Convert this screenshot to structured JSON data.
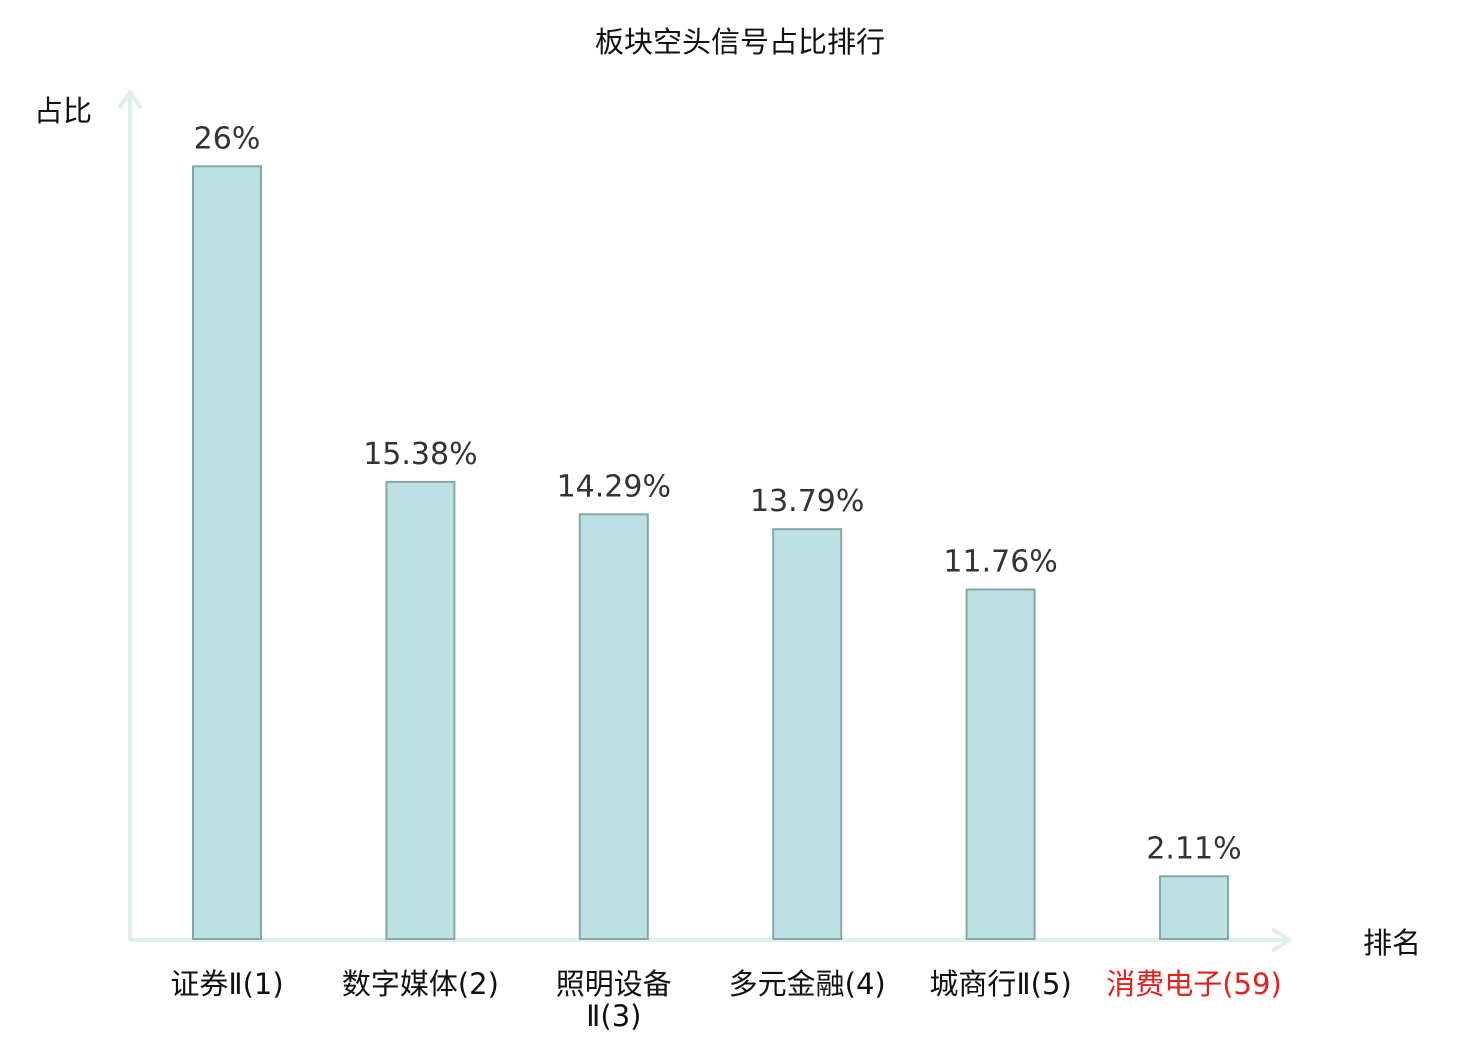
{
  "chart_data": {
    "type": "bar",
    "title": "板块空头信号占比排行",
    "ylabel": "占比",
    "xlabel": "排名",
    "ylim": [
      0,
      28.5
    ],
    "grid": false,
    "legend": "none",
    "categories": [
      {
        "name": "证券Ⅱ",
        "rank": "(1)",
        "highlight": false
      },
      {
        "name": "数字媒体",
        "rank": "(2)",
        "highlight": false
      },
      {
        "name": "照明设备Ⅱ",
        "rank": "(3)",
        "highlight": false
      },
      {
        "name": "多元金融",
        "rank": "(4)",
        "highlight": false
      },
      {
        "name": "城商行Ⅱ",
        "rank": "(5)",
        "highlight": false
      },
      {
        "name": "消费电子",
        "rank": "(59)",
        "highlight": true
      }
    ],
    "values": [
      26,
      15.38,
      14.29,
      13.79,
      11.76,
      2.11
    ],
    "value_labels": [
      "26%",
      "15.38%",
      "14.29%",
      "13.79%",
      "11.76%",
      "2.11%"
    ],
    "colors": {
      "bar_fill": "#bde0e3",
      "bar_stroke": "#86a7aa",
      "axis": "#dff1ee",
      "text": "#111111",
      "value_text": "#333333",
      "highlight": "#e3201b"
    }
  }
}
